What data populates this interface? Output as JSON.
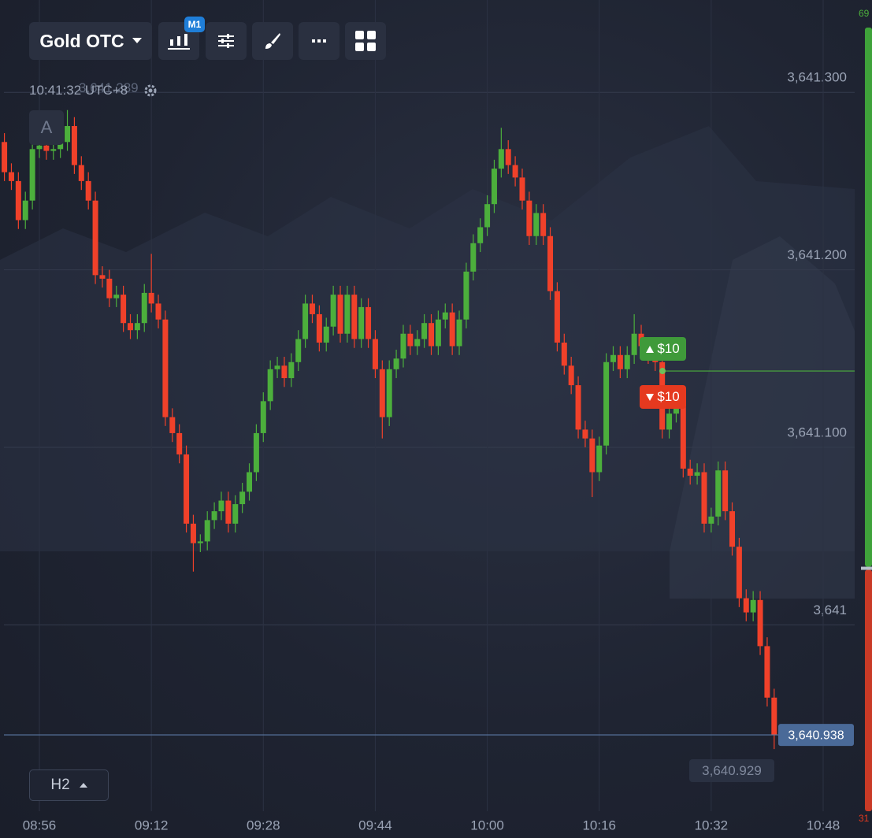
{
  "ui": {
    "asset": "Gold OTC",
    "timeframe_badge": "M1",
    "clock": "10:41:32 UTC+8",
    "faint_price": "3,641.289",
    "drawing_mode": "A",
    "chart_timeframe": "H2",
    "buy_amount": "$10",
    "sell_amount": "$10",
    "countdown_price": "3,640.929"
  },
  "chart_data": {
    "type": "candlestick",
    "x": [
      "08:51",
      "08:52",
      "08:53",
      "08:54",
      "08:55",
      "08:56",
      "08:57",
      "08:58",
      "08:59",
      "09:00",
      "09:01",
      "09:02",
      "09:03",
      "09:04",
      "09:05",
      "09:06",
      "09:07",
      "09:08",
      "09:09",
      "09:10",
      "09:11",
      "09:12",
      "09:13",
      "09:14",
      "09:15",
      "09:16",
      "09:17",
      "09:18",
      "09:19",
      "09:20",
      "09:21",
      "09:22",
      "09:23",
      "09:24",
      "09:25",
      "09:26",
      "09:27",
      "09:28",
      "09:29",
      "09:30",
      "09:31",
      "09:32",
      "09:33",
      "09:34",
      "09:35",
      "09:36",
      "09:37",
      "09:38",
      "09:39",
      "09:40",
      "09:41",
      "09:42",
      "09:43",
      "09:44",
      "09:45",
      "09:46",
      "09:47",
      "09:48",
      "09:49",
      "09:50",
      "09:51",
      "09:52",
      "09:53",
      "09:54",
      "09:55",
      "09:56",
      "09:57",
      "09:58",
      "09:59",
      "10:00",
      "10:01",
      "10:02",
      "10:03",
      "10:04",
      "10:05",
      "10:06",
      "10:07",
      "10:08",
      "10:09",
      "10:10",
      "10:11",
      "10:12",
      "10:13",
      "10:14",
      "10:15",
      "10:16",
      "10:17",
      "10:18",
      "10:19",
      "10:20",
      "10:21",
      "10:22",
      "10:23",
      "10:24",
      "10:25",
      "10:26",
      "10:27",
      "10:28",
      "10:29",
      "10:30",
      "10:31",
      "10:32",
      "10:33",
      "10:34",
      "10:35",
      "10:36",
      "10:37",
      "10:38",
      "10:39",
      "10:40",
      "10:41"
    ],
    "open": [
      3641.272,
      3641.255,
      3641.25,
      3641.228,
      3641.239,
      3641.268,
      3641.27,
      3641.267,
      3641.268,
      3641.272,
      3641.281,
      3641.259,
      3641.25,
      3641.239,
      3641.197,
      3641.195,
      3641.184,
      3641.186,
      3641.17,
      3641.166,
      3641.17,
      3641.187,
      3641.181,
      3641.172,
      3641.117,
      3641.108,
      3641.096,
      3641.057,
      3641.046,
      3641.047,
      3641.059,
      3641.064,
      3641.07,
      3641.057,
      3641.068,
      3641.075,
      3641.086,
      3641.108,
      3641.126,
      3641.144,
      3641.146,
      3641.139,
      3641.148,
      3641.161,
      3641.181,
      3641.175,
      3641.159,
      3641.168,
      3641.186,
      3641.164,
      3641.186,
      3641.161,
      3641.179,
      3641.161,
      3641.144,
      3641.117,
      3641.144,
      3641.15,
      3641.164,
      3641.157,
      3641.161,
      3641.17,
      3641.157,
      3641.172,
      3641.176,
      3641.157,
      3641.172,
      3641.199,
      3641.215,
      3641.224,
      3641.237,
      3641.257,
      3641.268,
      3641.259,
      3641.252,
      3641.239,
      3641.219,
      3641.232,
      3641.219,
      3641.188,
      3641.159,
      3641.146,
      3641.135,
      3641.11,
      3641.105,
      3641.086,
      3641.101,
      3641.148,
      3641.152,
      3641.144,
      3641.152,
      3641.164,
      3641.157,
      3641.152,
      3641.148,
      3641.11,
      3641.119,
      3641.128,
      3641.088,
      3641.084,
      3641.086,
      3641.057,
      3641.061,
      3641.087,
      3641.064,
      3641.044,
      3641.015,
      3641.007,
      3641.014,
      3640.988,
      3640.959
    ],
    "high": [
      3641.277,
      3641.26,
      3641.255,
      3641.244,
      3641.273,
      3641.275,
      3641.275,
      3641.273,
      3641.277,
      3641.29,
      3641.286,
      3641.264,
      3641.255,
      3641.244,
      3641.202,
      3641.2,
      3641.191,
      3641.191,
      3641.175,
      3641.175,
      3641.192,
      3641.209,
      3641.186,
      3641.177,
      3641.122,
      3641.113,
      3641.101,
      3641.062,
      3641.051,
      3641.064,
      3641.069,
      3641.075,
      3641.075,
      3641.073,
      3641.08,
      3641.091,
      3641.113,
      3641.131,
      3641.149,
      3641.151,
      3641.151,
      3641.153,
      3641.166,
      3641.186,
      3641.186,
      3641.18,
      3641.173,
      3641.191,
      3641.191,
      3641.191,
      3641.191,
      3641.184,
      3641.184,
      3641.166,
      3641.149,
      3641.149,
      3641.155,
      3641.169,
      3641.169,
      3641.166,
      3641.175,
      3641.175,
      3641.177,
      3641.181,
      3641.181,
      3641.177,
      3641.204,
      3641.22,
      3641.229,
      3641.242,
      3641.262,
      3641.28,
      3641.273,
      3641.264,
      3641.257,
      3641.244,
      3641.237,
      3641.237,
      3641.224,
      3641.193,
      3641.164,
      3641.151,
      3641.14,
      3641.115,
      3641.11,
      3641.106,
      3641.153,
      3641.157,
      3641.157,
      3641.157,
      3641.175,
      3641.169,
      3641.162,
      3641.157,
      3641.153,
      3641.124,
      3641.133,
      3641.133,
      3641.093,
      3641.091,
      3641.091,
      3641.066,
      3641.092,
      3641.092,
      3641.069,
      3641.049,
      3641.02,
      3641.019,
      3641.019,
      3640.993,
      3640.964
    ],
    "low": [
      3641.25,
      3641.245,
      3641.223,
      3641.223,
      3641.234,
      3641.263,
      3641.262,
      3641.262,
      3641.263,
      3641.267,
      3641.254,
      3641.245,
      3641.234,
      3641.192,
      3641.19,
      3641.179,
      3641.179,
      3641.165,
      3641.161,
      3641.161,
      3641.165,
      3641.176,
      3641.167,
      3641.112,
      3641.103,
      3641.091,
      3641.052,
      3641.03,
      3641.041,
      3641.042,
      3641.054,
      3641.059,
      3641.052,
      3641.052,
      3641.063,
      3641.07,
      3641.081,
      3641.103,
      3641.121,
      3641.139,
      3641.134,
      3641.134,
      3641.143,
      3641.156,
      3641.17,
      3641.154,
      3641.154,
      3641.163,
      3641.159,
      3641.159,
      3641.156,
      3641.156,
      3641.156,
      3641.139,
      3641.105,
      3641.112,
      3641.139,
      3641.145,
      3641.152,
      3641.152,
      3641.156,
      3641.152,
      3641.152,
      3641.167,
      3641.152,
      3641.152,
      3641.167,
      3641.194,
      3641.21,
      3641.219,
      3641.232,
      3641.252,
      3641.254,
      3641.247,
      3641.234,
      3641.214,
      3641.214,
      3641.214,
      3641.183,
      3641.154,
      3641.141,
      3641.13,
      3641.105,
      3641.1,
      3641.072,
      3641.081,
      3641.096,
      3641.143,
      3641.139,
      3641.139,
      3641.147,
      3641.152,
      3641.147,
      3641.143,
      3641.105,
      3641.105,
      3641.114,
      3641.083,
      3641.079,
      3641.079,
      3641.052,
      3641.052,
      3641.056,
      3641.059,
      3641.039,
      3641.01,
      3641.002,
      3641.002,
      3640.983,
      3640.954,
      3640.93
    ],
    "close": [
      3641.255,
      3641.25,
      3641.228,
      3641.239,
      3641.268,
      3641.27,
      3641.267,
      3641.268,
      3641.272,
      3641.281,
      3641.259,
      3641.25,
      3641.239,
      3641.197,
      3641.195,
      3641.184,
      3641.186,
      3641.17,
      3641.166,
      3641.17,
      3641.187,
      3641.181,
      3641.172,
      3641.117,
      3641.108,
      3641.096,
      3641.057,
      3641.046,
      3641.047,
      3641.059,
      3641.064,
      3641.07,
      3641.057,
      3641.068,
      3641.075,
      3641.086,
      3641.108,
      3641.126,
      3641.144,
      3641.146,
      3641.139,
      3641.148,
      3641.161,
      3641.181,
      3641.175,
      3641.159,
      3641.168,
      3641.186,
      3641.164,
      3641.186,
      3641.161,
      3641.179,
      3641.161,
      3641.144,
      3641.117,
      3641.144,
      3641.15,
      3641.164,
      3641.157,
      3641.161,
      3641.17,
      3641.157,
      3641.172,
      3641.176,
      3641.157,
      3641.172,
      3641.199,
      3641.215,
      3641.224,
      3641.237,
      3641.257,
      3641.268,
      3641.259,
      3641.252,
      3641.239,
      3641.219,
      3641.232,
      3641.219,
      3641.188,
      3641.159,
      3641.146,
      3641.135,
      3641.11,
      3641.105,
      3641.086,
      3641.101,
      3641.148,
      3641.152,
      3641.144,
      3641.152,
      3641.164,
      3641.157,
      3641.152,
      3641.148,
      3641.11,
      3641.119,
      3641.128,
      3641.088,
      3641.084,
      3641.086,
      3641.057,
      3641.061,
      3641.087,
      3641.064,
      3641.044,
      3641.015,
      3641.007,
      3641.014,
      3640.988,
      3640.959,
      3640.938
    ],
    "up_color": "#4caf3c",
    "down_color": "#f0412a",
    "ylim": [
      3640.895,
      3641.352
    ],
    "yticks": [
      {
        "value": 3641.3,
        "label": "3,641.300"
      },
      {
        "value": 3641.2,
        "label": "3,641.200"
      },
      {
        "value": 3641.1,
        "label": "3,641.100"
      },
      {
        "value": 3641,
        "label": "3,641"
      }
    ],
    "xticks": [
      "08:56",
      "09:12",
      "09:28",
      "09:44",
      "10:00",
      "10:16",
      "10:32",
      "10:48"
    ],
    "grid": true,
    "current_price": {
      "value": 3640.938,
      "label": "3,640.938"
    },
    "strike_price": 3641.143,
    "sentiment": {
      "up": 69,
      "down": 31
    }
  }
}
